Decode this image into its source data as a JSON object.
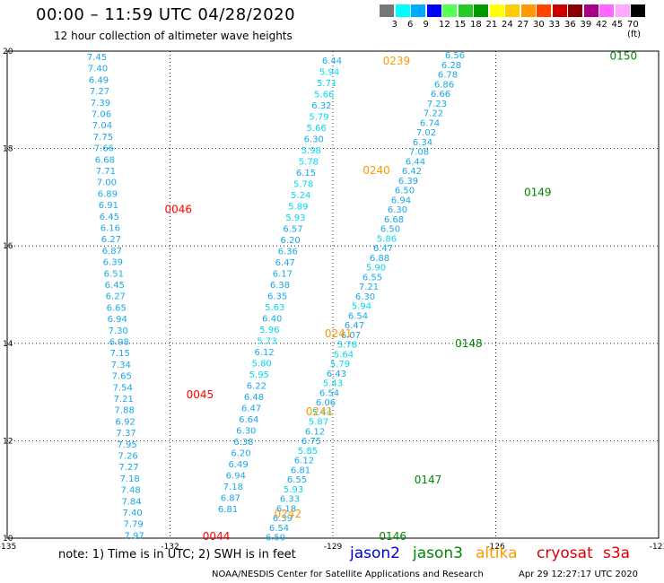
{
  "header": {
    "title": "00:00 – 11:59 UTC 04/28/2020",
    "subtitle": "12 hour collection of altimeter wave heights"
  },
  "colorbar": {
    "colors": [
      "#777777",
      "#00ffff",
      "#00aaff",
      "#0000ff",
      "#55ff55",
      "#22cc22",
      "#009900",
      "#ffff00",
      "#ffcc00",
      "#ff9900",
      "#ff4400",
      "#cc0000",
      "#880000",
      "#aa0088",
      "#ff66ff",
      "#ffaaff",
      "#000000"
    ],
    "labels": [
      "3",
      "6",
      "9",
      "12",
      "15",
      "18",
      "21",
      "24",
      "27",
      "30",
      "33",
      "36",
      "39",
      "42",
      "45",
      "70 (ft)"
    ]
  },
  "map": {
    "lon_range": [
      -135,
      -123
    ],
    "lat_range": [
      10,
      20
    ],
    "lon_ticks": [
      "-135",
      "-132",
      "-129",
      "-126",
      "-123",
      "-120"
    ],
    "lat_ticks": [
      "20",
      "18",
      "16",
      "14",
      "12",
      "10"
    ]
  },
  "tracks": [
    {
      "values": [
        "7.45",
        "7.40",
        "6.49",
        "7.27",
        "7.39",
        "7.06",
        "7.04",
        "7.75",
        "7.66",
        "6.68",
        "7.71",
        "7.00",
        "6.89",
        "6.91",
        "6.45",
        "6.16",
        "6.27",
        "6.87",
        "6.39",
        "6.51",
        "6.45",
        "6.27",
        "6.65",
        "6.94",
        "7.30",
        "6.98",
        "7.15",
        "7.34",
        "7.65",
        "7.54",
        "7.21",
        "7.88",
        "6.92",
        "7.37",
        "7.95",
        "7.26",
        "7.27",
        "7.18",
        "7.48",
        "7.84",
        "7.40",
        "7.79",
        "7.97",
        "7.99"
      ]
    },
    {
      "values": [
        "6.44",
        "5.94",
        "5.71",
        "5.66",
        "6.32",
        "5.79",
        "5.66",
        "6.30",
        "5.98",
        "5.78",
        "6.15",
        "5.78",
        "5.24",
        "5.89",
        "5.93",
        "6.57",
        "6.20",
        "6.36",
        "6.47",
        "6.17",
        "6.38",
        "6.35",
        "5.63",
        "6.40",
        "5.96",
        "5.73",
        "6.12",
        "5.80",
        "5.95",
        "6.22",
        "6.48",
        "6.47",
        "6.64",
        "6.30",
        "6.38",
        "6.20",
        "6.49",
        "6.94",
        "7.18",
        "6.87",
        "6.81"
      ]
    },
    {
      "values": [
        "6.56",
        "6.28",
        "6.78",
        "6.86",
        "6.66",
        "7.23",
        "7.22",
        "6.74",
        "7.02",
        "6.34",
        "7.08",
        "6.44",
        "6.42",
        "6.39",
        "6.50",
        "6.94",
        "6.30",
        "6.68",
        "6.50",
        "5.86",
        "6.47",
        "6.88",
        "5.90",
        "6.55",
        "7.21",
        "6.30",
        "5.94",
        "6.54",
        "6.47",
        "6.07",
        "5.78",
        "5.64",
        "5.79",
        "6.43",
        "5.43",
        "6.54",
        "6.06",
        "5.44",
        "5.87",
        "6.12",
        "6.75",
        "5.85",
        "6.12",
        "6.81",
        "6.55",
        "5.93",
        "6.33",
        "6.18",
        "6.39",
        "6.54",
        "6.59"
      ]
    }
  ],
  "passes": [
    {
      "time": "0046",
      "color": "#ff0000",
      "lon": -132.1,
      "lat": 16.75
    },
    {
      "time": "0045",
      "color": "#ff0000",
      "lon": -131.7,
      "lat": 12.95
    },
    {
      "time": "0044",
      "color": "#ff0000",
      "lon": -131.4,
      "lat": 10.0
    },
    {
      "time": "0239",
      "color": "#ff9900",
      "lon": -128.08,
      "lat": 19.8
    },
    {
      "time": "0240",
      "color": "#ff9900",
      "lon": -128.45,
      "lat": 17.55
    },
    {
      "time": "0241",
      "color": "#ff9900",
      "lon": -129.15,
      "lat": 14.2
    },
    {
      "time": "0241",
      "color": "#ff9900",
      "lon": -129.5,
      "lat": 12.6
    },
    {
      "time": "0242",
      "color": "#ff9900",
      "lon": -130.08,
      "lat": 10.5
    },
    {
      "time": "0150",
      "color": "#008800",
      "lon": -123.9,
      "lat": 19.9
    },
    {
      "time": "0149",
      "color": "#008800",
      "lon": -125.48,
      "lat": 17.1
    },
    {
      "time": "0148",
      "color": "#008800",
      "lon": -126.75,
      "lat": 14.0
    },
    {
      "time": "0147",
      "color": "#008800",
      "lon": -127.5,
      "lat": 11.2
    },
    {
      "time": "0146",
      "color": "#008800",
      "lon": -128.15,
      "lat": 10.0
    }
  ],
  "footer": {
    "note": "note:  1) Time is in UTC;  2) SWH is in feet",
    "satellites": [
      {
        "name": "jason2",
        "color": "#0000cc"
      },
      {
        "name": "jason3",
        "color": "#008800"
      },
      {
        "name": "altika",
        "color": "#ff9900"
      },
      {
        "name": "cryosat",
        "color": "#dd0000"
      },
      {
        "name": "s3a",
        "color": "#dd0000"
      }
    ],
    "credit": "NOAA/NESDIS Center for Satellite Applications and Research",
    "timestamp": "Apr 29 12:27:17 UTC 2020"
  }
}
